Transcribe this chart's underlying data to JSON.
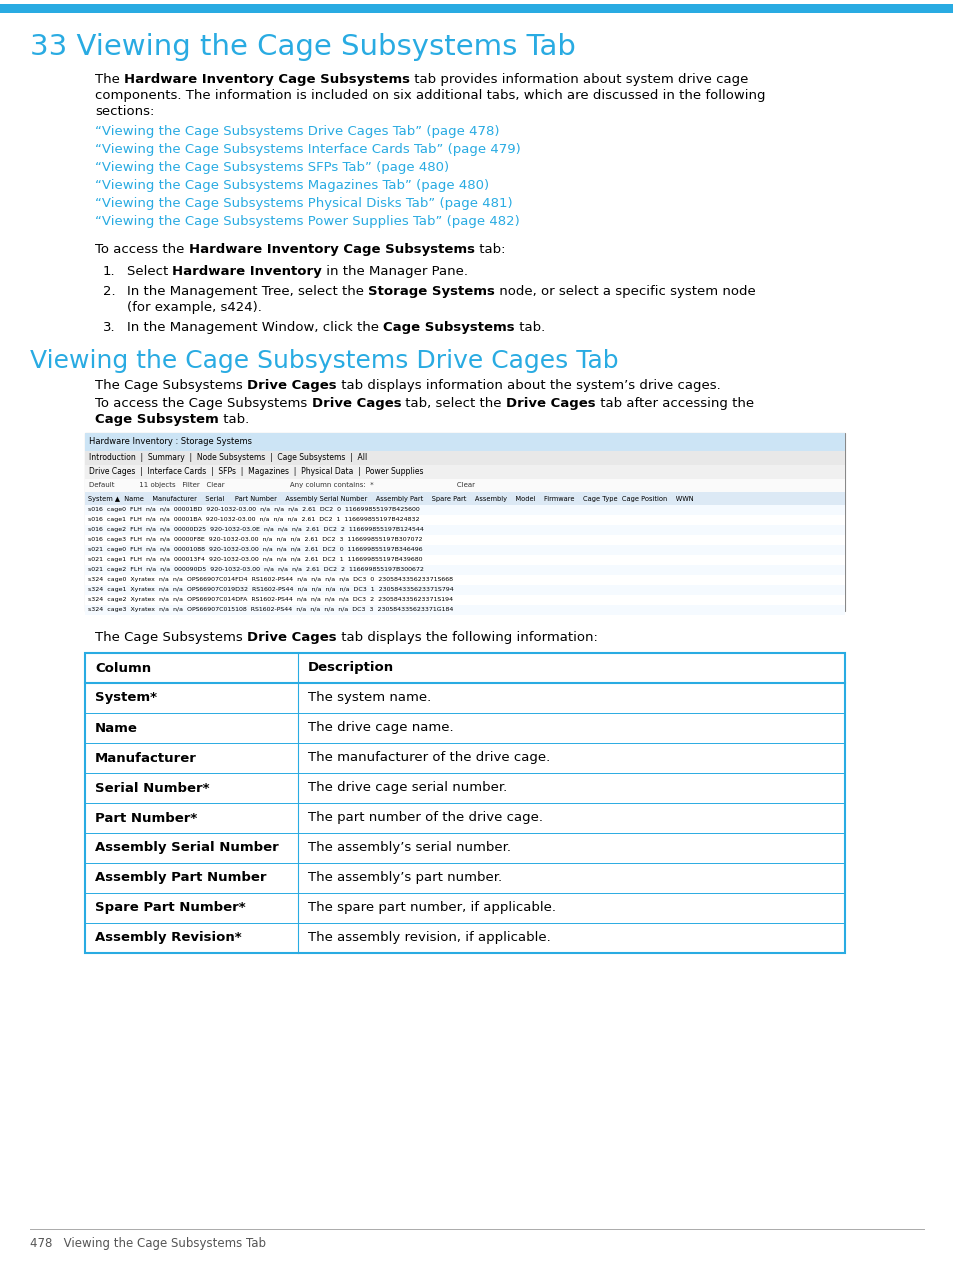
{
  "page_bg": "#ffffff",
  "top_bar_color": "#29abe2",
  "chapter_title": "33 Viewing the Cage Subsystems Tab",
  "chapter_title_color": "#29abe2",
  "section_title": "Viewing the Cage Subsystems Drive Cages Tab",
  "section_title_color": "#29abe2",
  "body_text_color": "#000000",
  "link_color": "#29abe2",
  "links": [
    "“Viewing the Cage Subsystems Drive Cages Tab” (page 478)",
    "“Viewing the Cage Subsystems Interface Cards Tab” (page 479)",
    "“Viewing the Cage Subsystems SFPs Tab” (page 480)",
    "“Viewing the Cage Subsystems Magazines Tab” (page 480)",
    "“Viewing the Cage Subsystems Physical Disks Tab” (page 481)",
    "“Viewing the Cage Subsystems Power Supplies Tab” (page 482)"
  ],
  "table_header": [
    "Column",
    "Description"
  ],
  "table_rows": [
    [
      "System*",
      "The system name."
    ],
    [
      "Name",
      "The drive cage name."
    ],
    [
      "Manufacturer",
      "The manufacturer of the drive cage."
    ],
    [
      "Serial Number*",
      "The drive cage serial number."
    ],
    [
      "Part Number*",
      "The part number of the drive cage."
    ],
    [
      "Assembly Serial Number",
      "The assembly’s serial number."
    ],
    [
      "Assembly Part Number",
      "The assembly’s part number."
    ],
    [
      "Spare Part Number*",
      "The spare part number, if applicable."
    ],
    [
      "Assembly Revision*",
      "The assembly revision, if applicable."
    ]
  ],
  "table_border_color": "#29abe2",
  "footer_text": "478   Viewing the Cage Subsystems Tab",
  "row_data": [
    "s016  cage0  FLH  n/a  n/a  00001BD  920-1032-03.00  n/a  n/a  n/a  2.61  DC2  0  116699855197B425600",
    "s016  cage1  FLH  n/a  n/a  00001BA  920-1032-03.00  n/a  n/a  n/a  2.61  DC2  1  116699855197B424832",
    "s016  cage2  FLH  n/a  n/a  00000D25  920-1032-03.0E  n/a  n/a  n/a  2.61  DC2  2  116699855197B124544",
    "s016  cage3  FLH  n/a  n/a  00000F8E  920-1032-03.00  n/a  n/a  n/a  2.61  DC2  3  116699855197B307072",
    "s021  cage0  FLH  n/a  n/a  00001088  920-1032-03.00  n/a  n/a  n/a  2.61  DC2  0  116699855197B346496",
    "s021  cage1  FLH  n/a  n/a  000013F4  920-1032-03.00  n/a  n/a  n/a  2.61  DC2  1  116699855197B439680",
    "s021  cage2  FLH  n/a  n/a  000090D5  920-1032-03.00  n/a  n/a  n/a  2.61  DC2  2  116699855197B300672",
    "s324  cage0  Xyratex  n/a  n/a  OPS66907C014FD4  RS1602-PS44  n/a  n/a  n/a  n/a  DC3  0  230584335623371S668",
    "s324  cage1  Xyratex  n/a  n/a  OPS66907C019D32  RS1602-PS44  n/a  n/a  n/a  n/a  DC3  1  230584335623371S794",
    "s324  cage2  Xyratex  n/a  n/a  OPS66907C014DFA  RS1602-PS44  n/a  n/a  n/a  n/a  DC3  2  230584335623371S194",
    "s324  cage3  Xyratex  n/a  n/a  OPS66907C015108  RS1602-PS44  n/a  n/a  n/a  n/a  DC3  3  230584335623371G184"
  ]
}
